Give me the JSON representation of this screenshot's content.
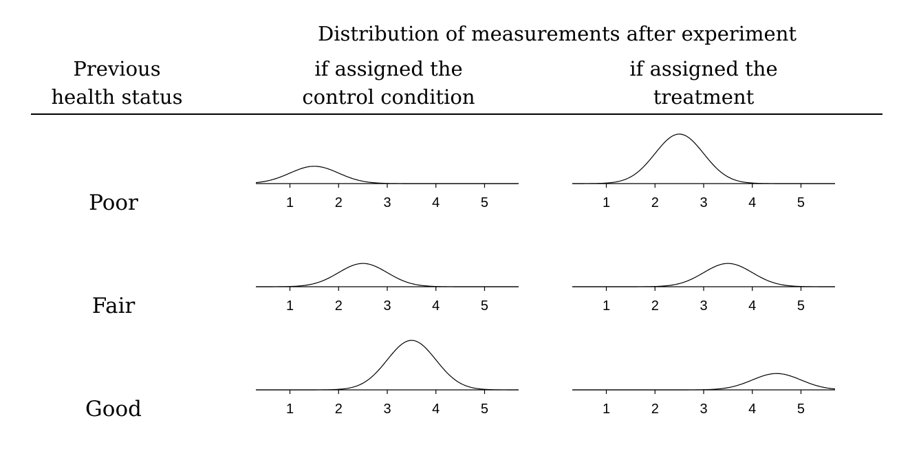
{
  "header": {
    "super_title": "Distribution of measurements after experiment",
    "col0_line1": "Previous",
    "col0_line2": "health status",
    "col1_line1": "if assigned the",
    "col1_line2": "control condition",
    "col2_line1": "if assigned the",
    "col2_line2": "treatment"
  },
  "rows": [
    "Poor",
    "Fair",
    "Good"
  ],
  "chart_data": [
    {
      "type": "line",
      "row": "Poor",
      "column": "control condition",
      "distribution": "normal",
      "mean": 1.5,
      "sd": 0.5,
      "peak_relative_height": 0.35,
      "x_ticks": [
        1,
        2,
        3,
        4,
        5
      ],
      "xlim": [
        0.3,
        5.7
      ]
    },
    {
      "type": "line",
      "row": "Poor",
      "column": "treatment",
      "distribution": "normal",
      "mean": 2.5,
      "sd": 0.5,
      "peak_relative_height": 1.0,
      "x_ticks": [
        1,
        2,
        3,
        4,
        5
      ],
      "xlim": [
        0.3,
        5.7
      ]
    },
    {
      "type": "line",
      "row": "Fair",
      "column": "control condition",
      "distribution": "normal",
      "mean": 2.5,
      "sd": 0.5,
      "peak_relative_height": 0.47,
      "x_ticks": [
        1,
        2,
        3,
        4,
        5
      ],
      "xlim": [
        0.3,
        5.7
      ]
    },
    {
      "type": "line",
      "row": "Fair",
      "column": "treatment",
      "distribution": "normal",
      "mean": 3.5,
      "sd": 0.5,
      "peak_relative_height": 0.47,
      "x_ticks": [
        1,
        2,
        3,
        4,
        5
      ],
      "xlim": [
        0.3,
        5.7
      ]
    },
    {
      "type": "line",
      "row": "Good",
      "column": "control condition",
      "distribution": "normal",
      "mean": 3.5,
      "sd": 0.5,
      "peak_relative_height": 1.0,
      "x_ticks": [
        1,
        2,
        3,
        4,
        5
      ],
      "xlim": [
        0.3,
        5.7
      ]
    },
    {
      "type": "line",
      "row": "Good",
      "column": "treatment",
      "distribution": "normal",
      "mean": 4.5,
      "sd": 0.5,
      "peak_relative_height": 0.33,
      "x_ticks": [
        1,
        2,
        3,
        4,
        5
      ],
      "xlim": [
        0.3,
        5.7
      ]
    }
  ]
}
